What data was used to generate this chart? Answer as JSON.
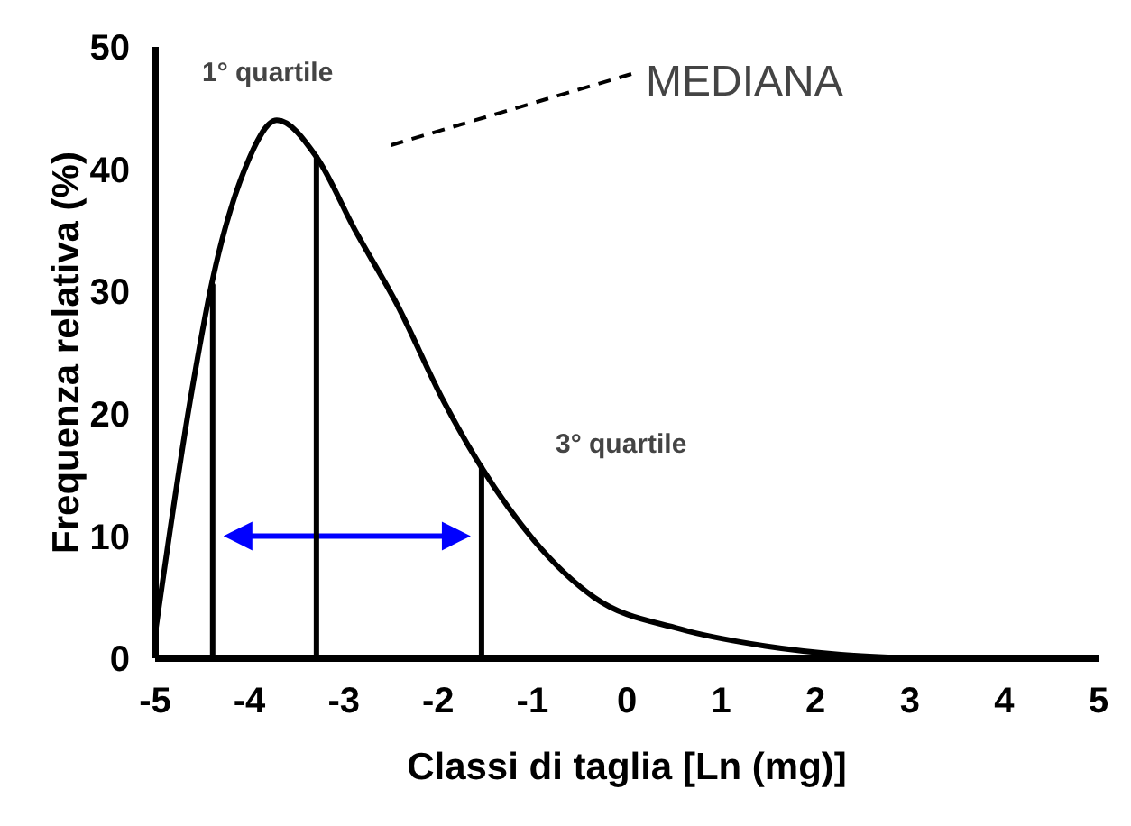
{
  "chart_data": {
    "type": "line",
    "xlabel": "Classi di taglia [Ln (mg)]",
    "ylabel": "Frequenza relativa (%)",
    "xlim": [
      -5,
      5
    ],
    "xticks": [
      -5,
      -4,
      -3,
      -2,
      -1,
      0,
      1,
      2,
      3,
      4,
      5
    ],
    "ylim": [
      0,
      50
    ],
    "yticks": [
      0,
      10,
      20,
      30,
      40,
      50
    ],
    "grid": false,
    "marker": "none",
    "series": [
      {
        "color": "#000000",
        "x": [
          -5,
          -4.63,
          -4.39,
          -4.05,
          -3.71,
          -3.29,
          -2.88,
          -2.44,
          -1.94,
          -1.54,
          -0.98,
          -0.35,
          0.56,
          1.47,
          2.27,
          3
        ],
        "values": [
          2,
          21,
          31,
          40,
          44,
          41,
          35,
          29,
          21,
          15.6,
          9.6,
          5,
          2.4,
          1,
          0.3,
          0
        ]
      },
      {
        "color": "#000000",
        "x": [
          -4.39,
          -4.39
        ],
        "values": [
          0,
          30.5
        ]
      },
      {
        "color": "#000000",
        "x": [
          -3.29,
          -3.29
        ],
        "values": [
          0,
          41
        ]
      },
      {
        "color": "#000000",
        "x": [
          -1.54,
          -1.54
        ],
        "values": [
          0,
          15.6
        ]
      }
    ],
    "annotations": [
      "1° quartile",
      "MEDIANA",
      "3° quartile"
    ]
  }
}
